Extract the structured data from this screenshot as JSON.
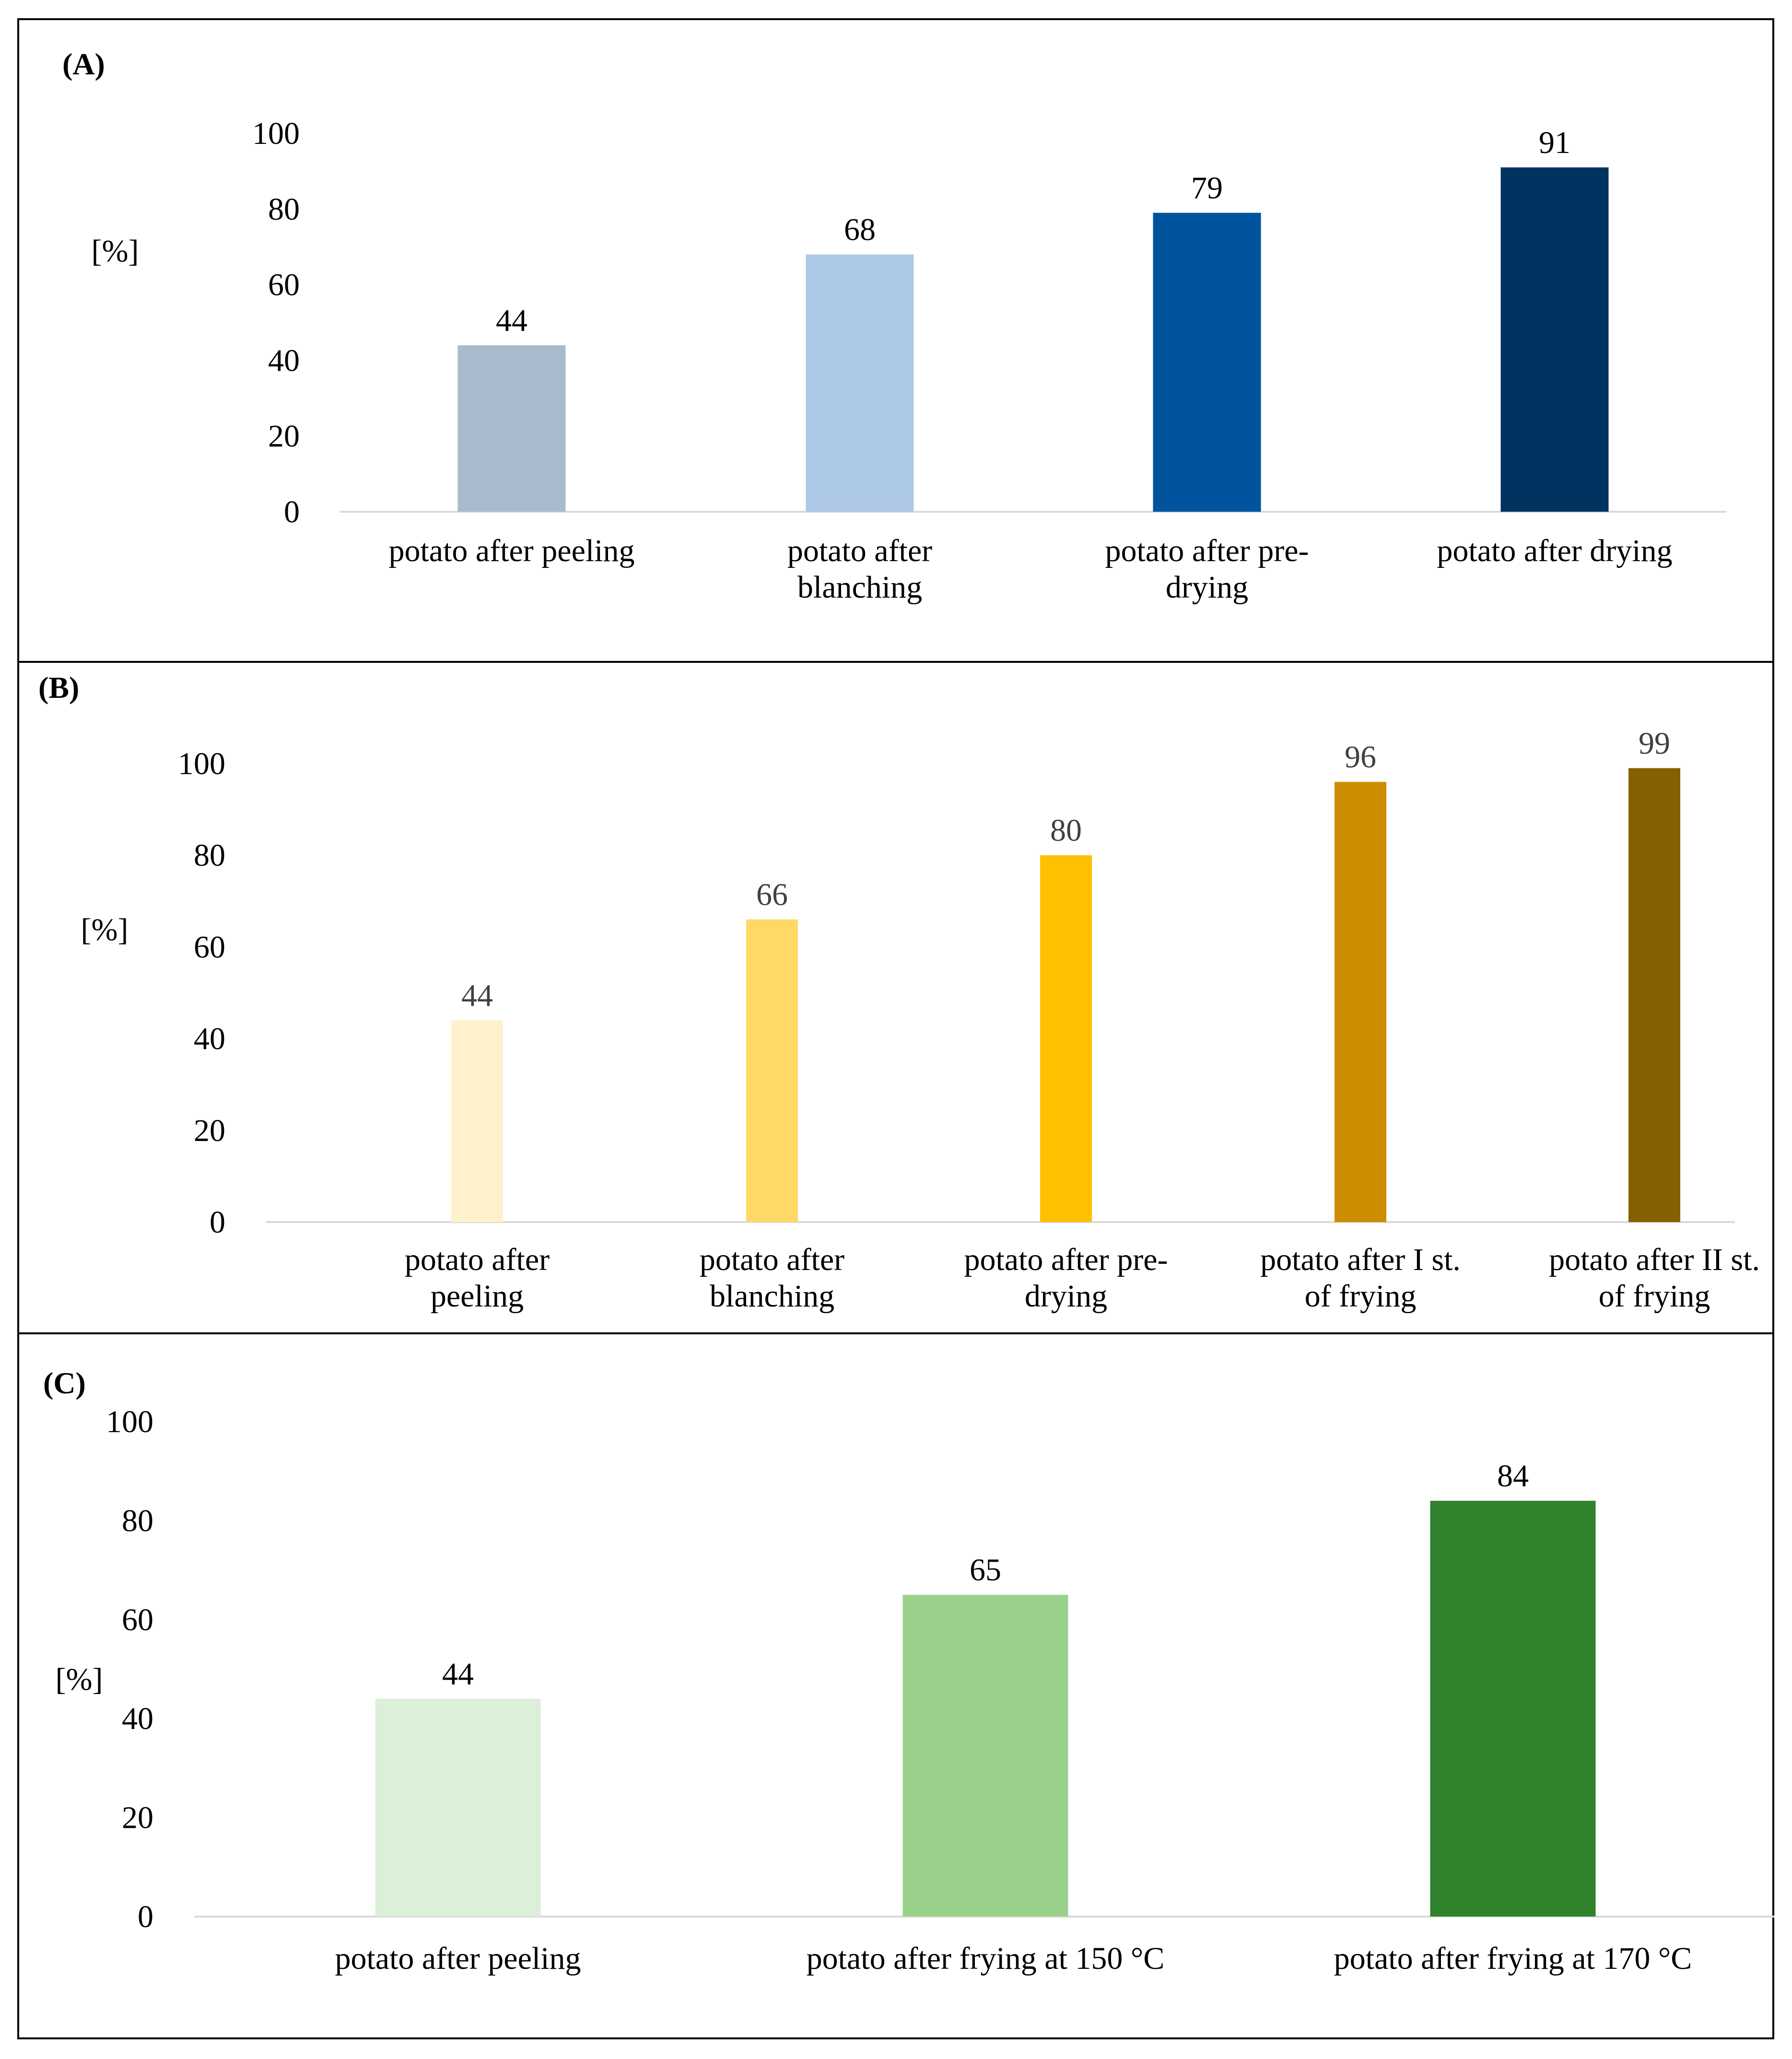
{
  "chart_data": [
    {
      "type": "bar",
      "panel_label": "(A)",
      "ylabel": "[%]",
      "yticks": [
        "0",
        "20",
        "40",
        "60",
        "80",
        "100"
      ],
      "ylim": [
        0,
        100
      ],
      "categories": [
        [
          "potato after peeling"
        ],
        [
          "potato after",
          "blanching"
        ],
        [
          "potato after pre-",
          "drying"
        ],
        [
          "potato after drying"
        ]
      ],
      "values": [
        44,
        68,
        79,
        91
      ],
      "value_labels": [
        "44",
        "68",
        "79",
        "91"
      ],
      "colors": [
        "#a9bacd",
        "#aec8e8",
        "#00539c",
        "#003360"
      ],
      "grid": false,
      "legend": "none"
    },
    {
      "type": "bar",
      "panel_label": "(B)",
      "ylabel": "[%]",
      "yticks": [
        "0",
        "20",
        "40",
        "60",
        "80",
        "100"
      ],
      "ylim": [
        0,
        100
      ],
      "categories": [
        [
          "potato after",
          "peeling"
        ],
        [
          "potato after",
          "blanching"
        ],
        [
          "potato after pre-",
          "drying"
        ],
        [
          "potato after I st.",
          "of frying"
        ],
        [
          "potato after II st.",
          "of frying"
        ]
      ],
      "values": [
        44,
        66,
        80,
        96,
        99
      ],
      "value_labels": [
        "44",
        "66",
        "80",
        "96",
        "99"
      ],
      "colors": [
        "#fff1cc",
        "#ffd966",
        "#ffc000",
        "#cc8e00",
        "#856000"
      ],
      "grid": false,
      "legend": "none"
    },
    {
      "type": "bar",
      "panel_label": "(C)",
      "ylabel": "[%]",
      "yticks": [
        "0",
        "20",
        "40",
        "60",
        "80",
        "100"
      ],
      "ylim": [
        0,
        100
      ],
      "categories": [
        [
          "potato after peeling"
        ],
        [
          "potato after frying at 150 °C"
        ],
        [
          "potato after frying at 170 °C"
        ]
      ],
      "values": [
        44,
        65,
        84
      ],
      "value_labels": [
        "44",
        "65",
        "84"
      ],
      "colors": [
        "#dcefd9",
        "#99d18a",
        "#31822c"
      ],
      "grid": false,
      "legend": "none"
    }
  ]
}
